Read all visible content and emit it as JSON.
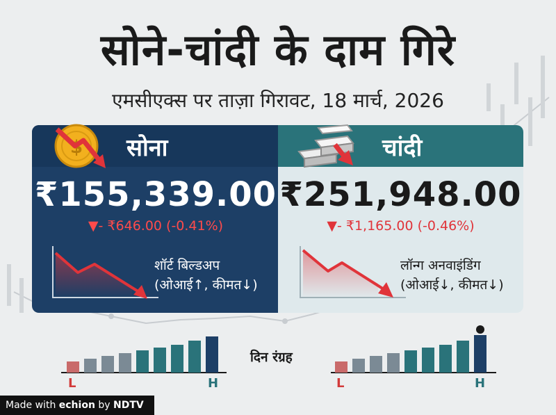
{
  "title": "सोने-चांदी के दाम गिरे",
  "subtitle": "एमसीएक्स पर ताज़ा गिरावट, 18 मार्च, 2026",
  "gold": {
    "name": "सोना",
    "price": "₹155,339.00",
    "change": "▼- ₹646.00 (-0.41%)",
    "signal_line1": "शॉर्ट बिल्डअप",
    "signal_line2": "(ओआई↑, कीमत↓)",
    "icon": "gold-coin-down-icon"
  },
  "silver": {
    "name": "चांदी",
    "price": "₹251,948.00",
    "change": "▼- ₹1,165.00 (-0.46%)",
    "signal_line1": "लॉन्ग अनवाइंडिंग",
    "signal_line2": "(ओआई↓, कीमत↓)",
    "icon": "silver-bars-down-icon"
  },
  "day_range": {
    "label": "दिन रंग्रह",
    "low_label": "L",
    "high_label": "H"
  },
  "watermark": {
    "made_with": "Made with",
    "brand": "echion",
    "by": "by",
    "publisher": "NDTV"
  },
  "colors": {
    "gold_card": "#1d3f66",
    "silver_card": "#dfe9ec",
    "silver_header": "#2a737a",
    "down_red": "#e0343a",
    "coin_gold": "#f2b01e"
  }
}
